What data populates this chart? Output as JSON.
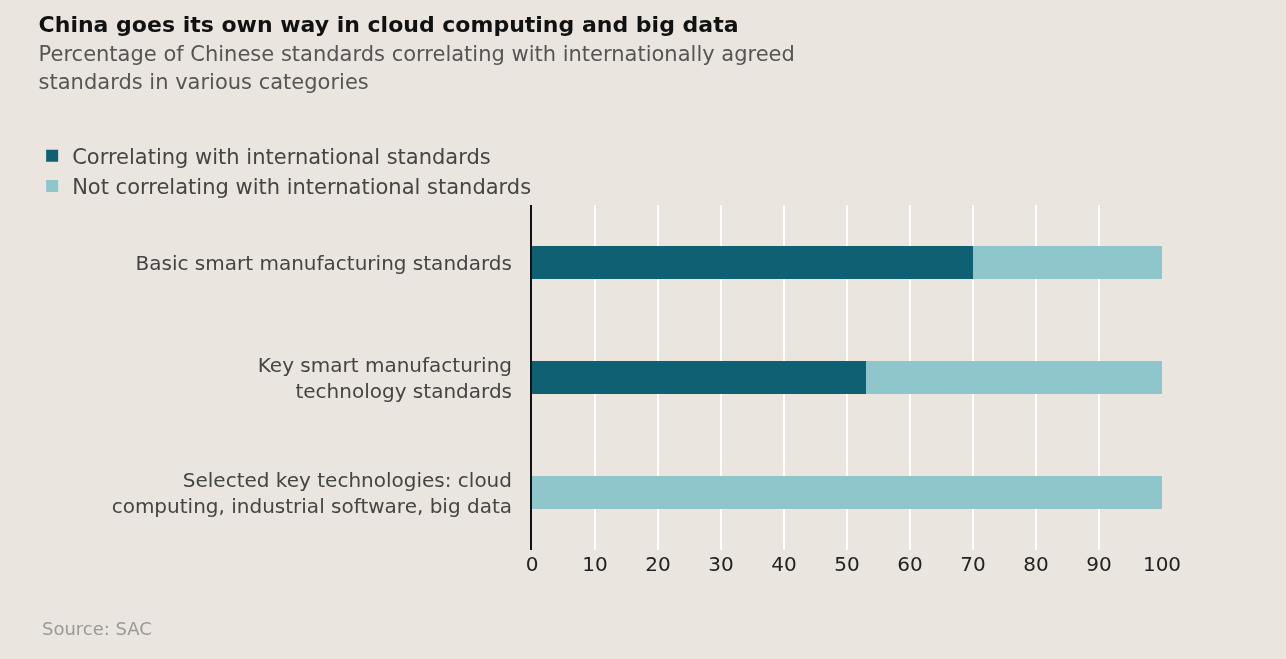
{
  "chart_data": {
    "type": "bar",
    "orientation": "horizontal",
    "stacked": true,
    "title": "China goes its own way in cloud computing and big data",
    "subtitle": "Percentage of Chinese standards correlating with internationally agreed standards in various categories",
    "categories": [
      "Basic smart manufacturing standards",
      "Key smart manufacturing\ntechnology standards",
      "Selected key technologies: cloud\ncomputing, industrial software, big data"
    ],
    "series": [
      {
        "name": "Correlating with international standards",
        "color": "#0f6073",
        "values": [
          70,
          53,
          0
        ]
      },
      {
        "name": "Not correlating with international standards",
        "color": "#8fc6cc",
        "values": [
          30,
          47,
          100
        ]
      }
    ],
    "xlim": [
      0,
      100
    ],
    "xticks": [
      0,
      10,
      20,
      30,
      40,
      50,
      60,
      70,
      80,
      90,
      100
    ],
    "grid": "x",
    "legend": "top left",
    "annotations": [
      "Source: SAC"
    ]
  }
}
